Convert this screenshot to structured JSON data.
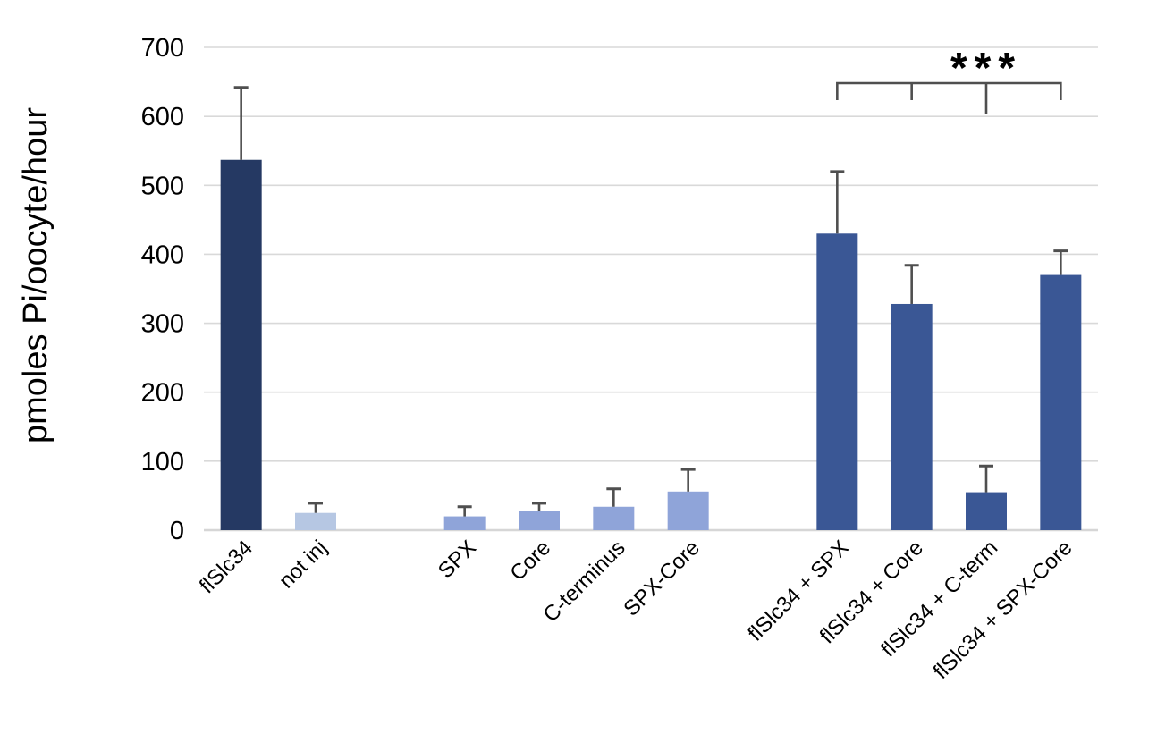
{
  "figure": {
    "background_color": "#FFFFFF"
  },
  "chart_data": {
    "type": "bar",
    "title": "",
    "xlabel": "",
    "ylabel": "pmoles Pi/oocyte/hour",
    "ylim": [
      0,
      700
    ],
    "yticks": [
      0,
      100,
      200,
      300,
      400,
      500,
      600,
      700
    ],
    "grid": "horizontal",
    "legend": "none",
    "categories": [
      "flSlc34",
      "not inj",
      "",
      "SPX",
      "Core",
      "C-terminus",
      "SPX-Core",
      "",
      "flSlc34 + SPX",
      "flSlc34 + Core",
      "flSlc34 + C-term",
      "flSlc34 + SPX-Core"
    ],
    "values": [
      537,
      25,
      null,
      20,
      28,
      34,
      56,
      null,
      430,
      328,
      55,
      370
    ],
    "errors_plus": [
      105,
      14,
      null,
      14,
      11,
      26,
      32,
      null,
      90,
      56,
      38,
      35
    ],
    "bar_colors": [
      "#253963",
      "#B6C7E3",
      null,
      "#8FA4D9",
      "#8FA4D9",
      "#8FA4D9",
      "#8FA4D9",
      null,
      "#3A5795",
      "#3A5795",
      "#3A5795",
      "#3A5795"
    ],
    "error_bar_color": "#4F4F4F",
    "gridline_color": "#D9D9D9",
    "axis_line_color": "#D6D6D6",
    "tick_label_color": "#000000",
    "annotation": {
      "text": "***",
      "style": "significance-bracket",
      "bracket_color": "#4F4F4F",
      "spans_categories": [
        "flSlc34 + SPX",
        "flSlc34 + Core",
        "flSlc34 + C-term",
        "flSlc34 + SPX-Core"
      ],
      "long_tick_category": "flSlc34 + C-term"
    }
  }
}
